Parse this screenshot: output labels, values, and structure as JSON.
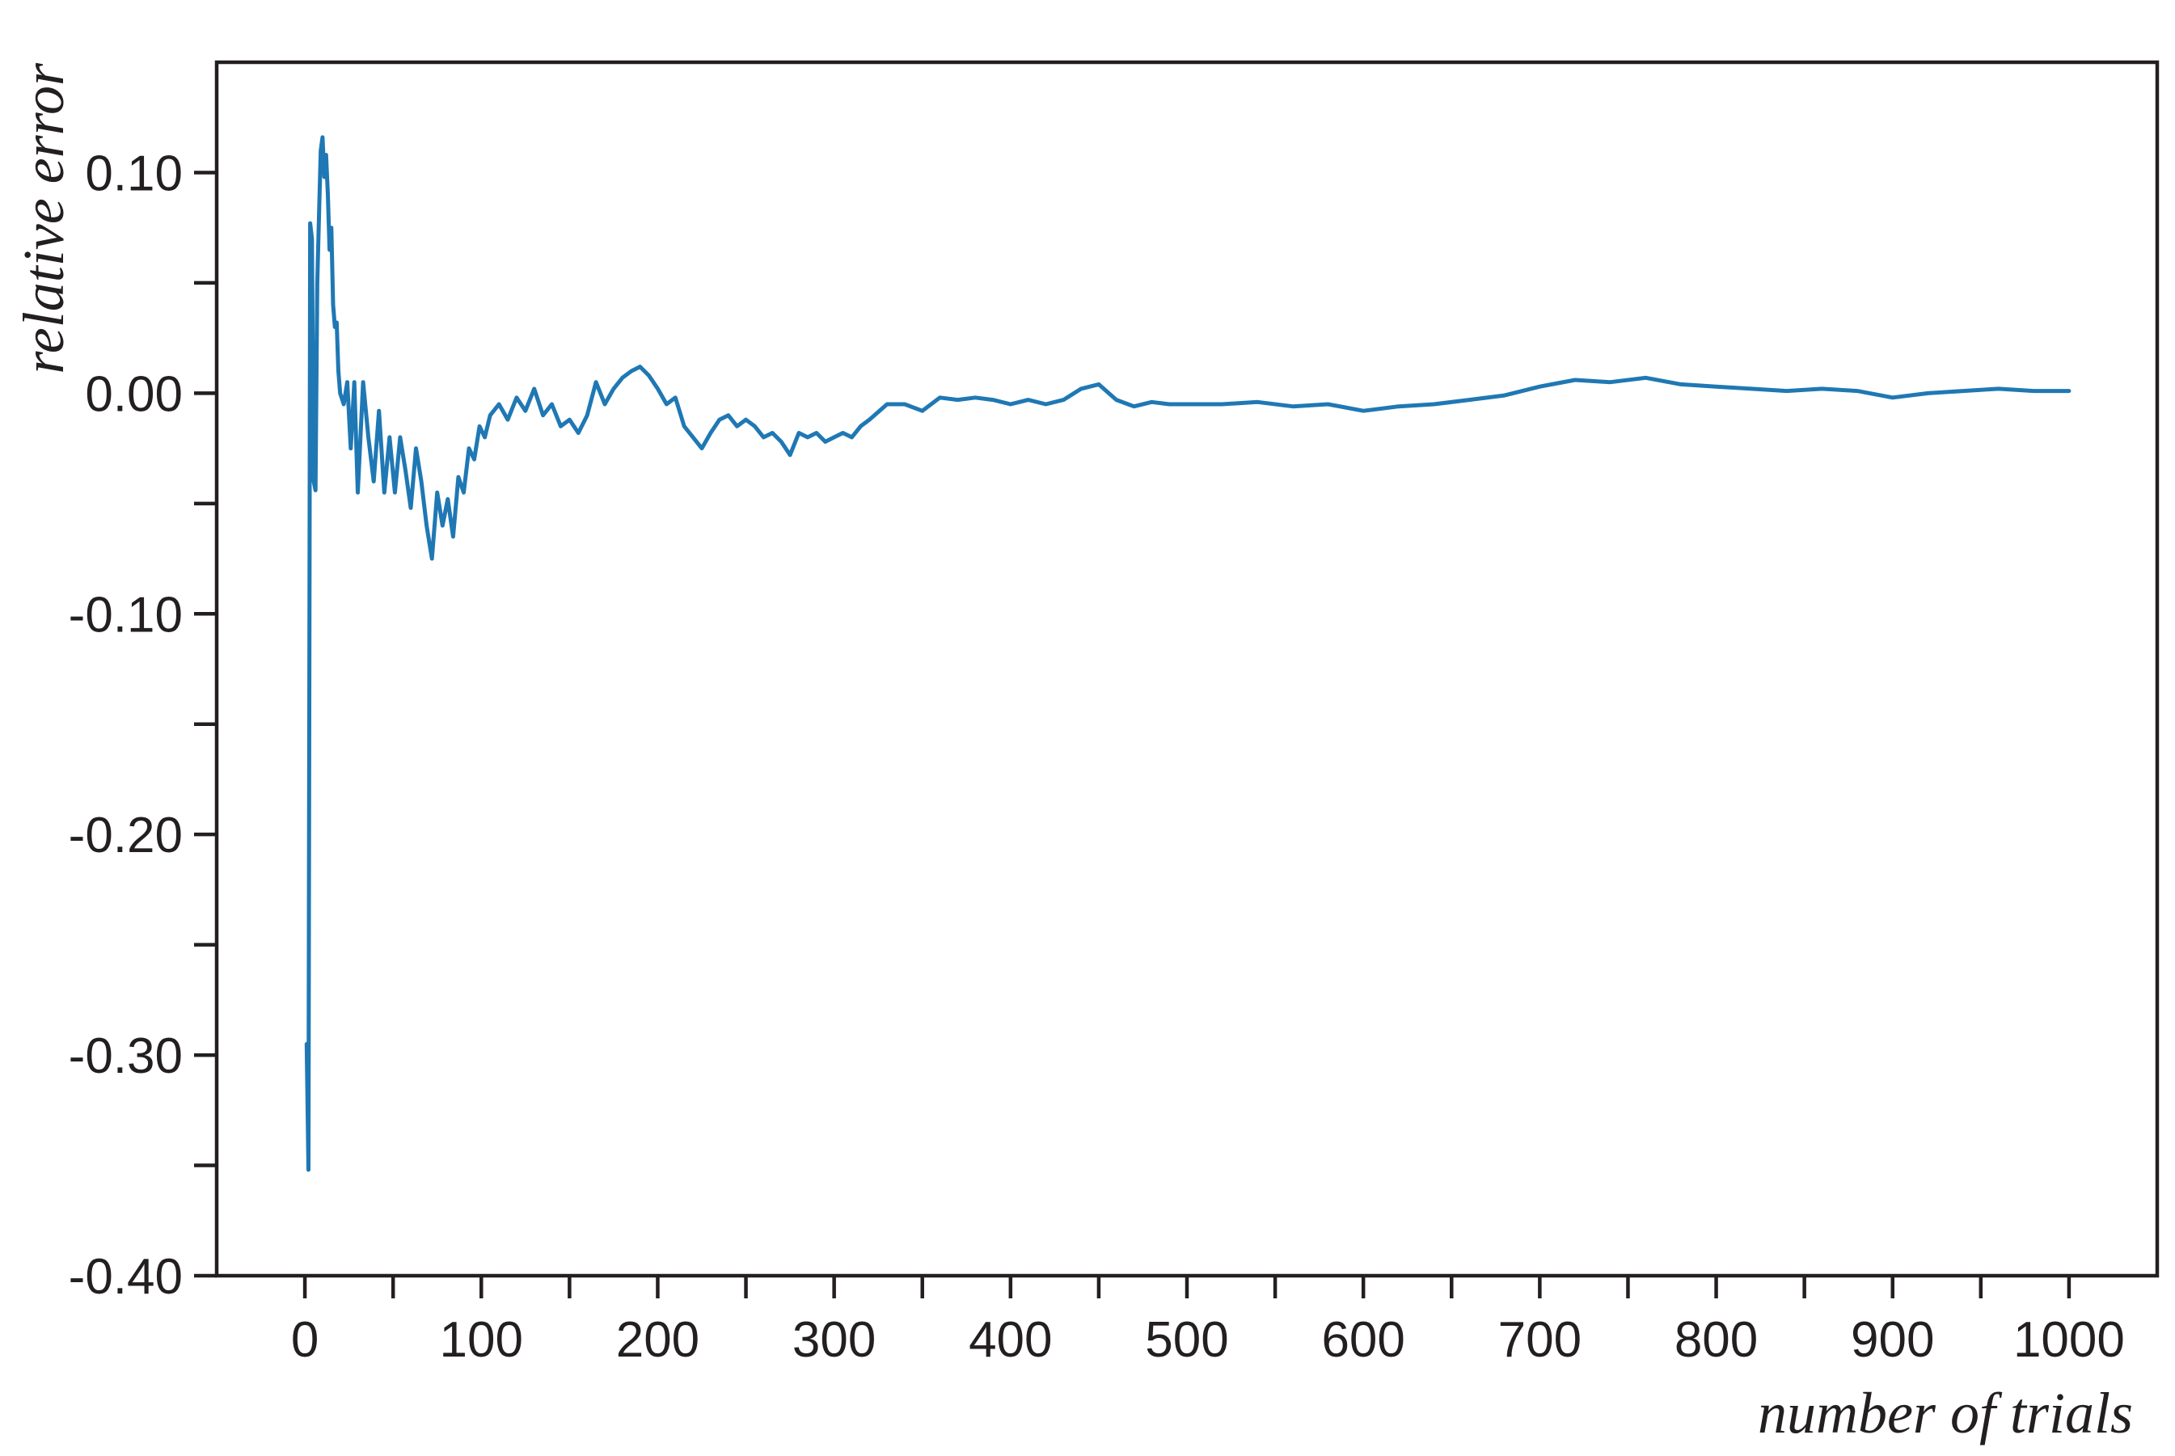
{
  "chart_data": {
    "type": "line",
    "title": "",
    "xlabel": "number of trials",
    "ylabel": "relative error",
    "xlim": [
      -50,
      1050
    ],
    "ylim": [
      -0.4,
      0.15
    ],
    "x_ticks": [
      0,
      100,
      200,
      300,
      400,
      500,
      600,
      700,
      800,
      900,
      1000
    ],
    "x_tick_labels": [
      "0",
      "100",
      "200",
      "300",
      "400",
      "500",
      "600",
      "700",
      "800",
      "900",
      "1000"
    ],
    "x_minor_ticks": [
      50,
      150,
      250,
      350,
      450,
      550,
      650,
      750,
      850,
      950
    ],
    "y_ticks": [
      0.1,
      0.0,
      -0.1,
      -0.2,
      -0.3,
      -0.4
    ],
    "y_tick_labels": [
      "0.10",
      "0.00",
      "-0.10",
      "-0.20",
      "-0.30",
      "-0.40"
    ],
    "y_minor_ticks": [
      0.05,
      -0.05,
      -0.15,
      -0.25,
      -0.35
    ],
    "grid": false,
    "legend": "none",
    "series_color": "#1f78b4",
    "series": [
      {
        "x": [
          1,
          2,
          3,
          4,
          5,
          6,
          7,
          8,
          9,
          10,
          11,
          12,
          13,
          14,
          15,
          16,
          17,
          18,
          19,
          20,
          22,
          24,
          26,
          28,
          30,
          33,
          36,
          39,
          42,
          45,
          48,
          51,
          54,
          57,
          60,
          63,
          66,
          69,
          72,
          75,
          78,
          81,
          84,
          87,
          90,
          93,
          96,
          99,
          102,
          105,
          110,
          115,
          120,
          125,
          130,
          135,
          140,
          145,
          150,
          155,
          160,
          165,
          170,
          175,
          180,
          185,
          190,
          195,
          200,
          205,
          210,
          215,
          220,
          225,
          230,
          235,
          240,
          245,
          250,
          255,
          260,
          265,
          270,
          275,
          280,
          285,
          290,
          295,
          300,
          305,
          310,
          315,
          320,
          330,
          340,
          350,
          360,
          370,
          380,
          390,
          400,
          410,
          420,
          430,
          440,
          450,
          460,
          470,
          480,
          490,
          500,
          520,
          540,
          560,
          580,
          600,
          620,
          640,
          660,
          680,
          700,
          720,
          740,
          760,
          780,
          800,
          820,
          840,
          860,
          880,
          900,
          920,
          940,
          960,
          980,
          1000
        ],
        "y": [
          -0.295,
          -0.352,
          0.077,
          0.07,
          -0.04,
          -0.044,
          0.05,
          0.08,
          0.11,
          0.116,
          0.098,
          0.108,
          0.09,
          0.065,
          0.075,
          0.04,
          0.03,
          0.032,
          0.01,
          0.0,
          -0.005,
          0.005,
          -0.025,
          0.005,
          -0.045,
          0.005,
          -0.02,
          -0.04,
          -0.008,
          -0.045,
          -0.02,
          -0.045,
          -0.02,
          -0.035,
          -0.052,
          -0.025,
          -0.04,
          -0.06,
          -0.075,
          -0.045,
          -0.06,
          -0.048,
          -0.065,
          -0.038,
          -0.045,
          -0.025,
          -0.03,
          -0.015,
          -0.02,
          -0.01,
          -0.005,
          -0.012,
          -0.002,
          -0.008,
          0.002,
          -0.01,
          -0.005,
          -0.015,
          -0.012,
          -0.018,
          -0.01,
          0.005,
          -0.005,
          0.002,
          0.007,
          0.01,
          0.012,
          0.008,
          0.002,
          -0.005,
          -0.002,
          -0.015,
          -0.02,
          -0.025,
          -0.018,
          -0.012,
          -0.01,
          -0.015,
          -0.012,
          -0.015,
          -0.02,
          -0.018,
          -0.022,
          -0.028,
          -0.018,
          -0.02,
          -0.018,
          -0.022,
          -0.02,
          -0.018,
          -0.02,
          -0.015,
          -0.012,
          -0.005,
          -0.005,
          -0.008,
          -0.002,
          -0.003,
          -0.002,
          -0.003,
          -0.005,
          -0.003,
          -0.005,
          -0.003,
          0.002,
          0.004,
          -0.003,
          -0.006,
          -0.004,
          -0.005,
          -0.005,
          -0.005,
          -0.004,
          -0.006,
          -0.005,
          -0.008,
          -0.006,
          -0.005,
          -0.003,
          -0.001,
          0.003,
          0.006,
          0.005,
          0.007,
          0.004,
          0.003,
          0.002,
          0.001,
          0.002,
          0.001,
          -0.002,
          0.0,
          0.001,
          0.002,
          0.001,
          0.001
        ]
      }
    ]
  }
}
